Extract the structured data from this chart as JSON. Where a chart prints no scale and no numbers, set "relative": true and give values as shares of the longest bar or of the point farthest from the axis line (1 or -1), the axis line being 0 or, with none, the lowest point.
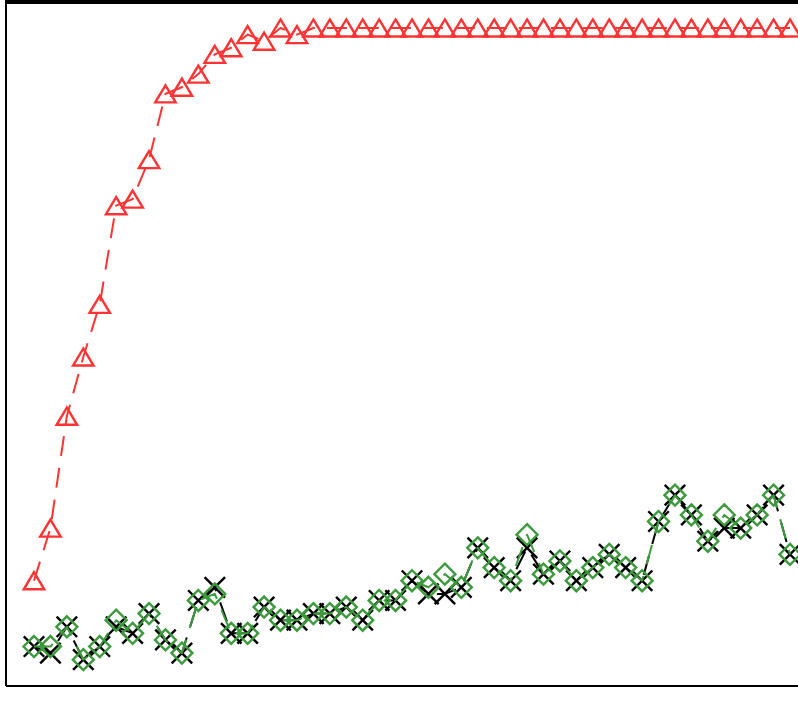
{
  "chart_data": {
    "type": "line",
    "relative": true,
    "categories": [
      null,
      null,
      null,
      null,
      null,
      null,
      null,
      null,
      null,
      null,
      null,
      null,
      null,
      null,
      null,
      null,
      null,
      null,
      null,
      null,
      null,
      null,
      null,
      null,
      null,
      null,
      null,
      null,
      null,
      null,
      null,
      null,
      null,
      null,
      null,
      null,
      null,
      null,
      null,
      null,
      null,
      null,
      null,
      null,
      null,
      null,
      null
    ],
    "series": [
      {
        "color": "#ff3333",
        "marker": "triangle",
        "line_style": "dashed",
        "values": [
          0.16,
          0.24,
          0.41,
          0.5,
          0.58,
          0.73,
          0.74,
          0.8,
          0.9,
          0.91,
          0.93,
          0.96,
          0.97,
          0.99,
          0.98,
          1,
          0.99,
          1,
          1,
          1,
          1,
          1,
          1,
          1,
          1,
          1,
          1,
          1,
          1,
          1,
          1,
          1,
          1,
          1,
          1,
          1,
          1,
          1,
          1,
          1,
          1,
          1,
          1,
          1,
          1,
          1,
          1
        ]
      },
      {
        "color": "#000000",
        "marker": "cross",
        "line_style": "dashed",
        "values": [
          0.06,
          0.05,
          0.09,
          0.04,
          0.06,
          0.09,
          0.08,
          0.11,
          0.07,
          0.05,
          0.13,
          0.15,
          0.08,
          0.08,
          0.12,
          0.1,
          0.1,
          0.11,
          0.11,
          0.12,
          0.1,
          0.13,
          0.13,
          0.16,
          0.14,
          0.14,
          0.15,
          0.21,
          0.18,
          0.16,
          0.21,
          0.17,
          0.19,
          0.16,
          0.18,
          0.2,
          0.18,
          0.16,
          0.25,
          0.29,
          0.26,
          0.22,
          0.24,
          0.24,
          0.26,
          0.29,
          0.2
        ]
      },
      {
        "color": "#3c9a3c",
        "marker": "diamond",
        "line_style": "dashed",
        "values": [
          0.06,
          0.06,
          0.09,
          0.04,
          0.06,
          0.1,
          0.08,
          0.11,
          0.07,
          0.05,
          0.13,
          0.14,
          0.08,
          0.08,
          0.12,
          0.1,
          0.1,
          0.11,
          0.11,
          0.12,
          0.1,
          0.13,
          0.13,
          0.16,
          0.15,
          0.17,
          0.15,
          0.21,
          0.18,
          0.16,
          0.23,
          0.17,
          0.19,
          0.16,
          0.18,
          0.2,
          0.18,
          0.16,
          0.25,
          0.29,
          0.26,
          0.22,
          0.26,
          0.24,
          0.26,
          0.29,
          0.2
        ]
      }
    ]
  }
}
